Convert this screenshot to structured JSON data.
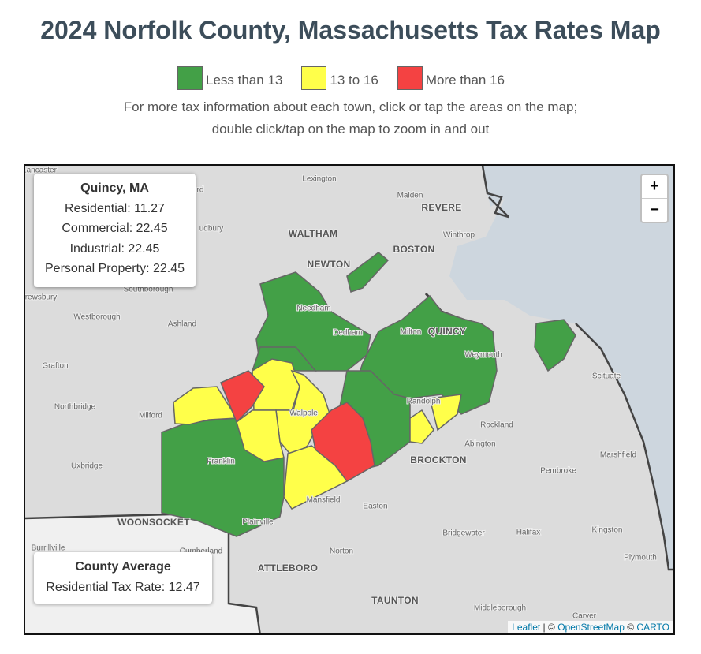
{
  "header": {
    "title": "2024 Norfolk County, Massachusetts Tax Rates Map",
    "legend": [
      {
        "label": "Less than 13",
        "color": "#43a047"
      },
      {
        "label": "13 to 16",
        "color": "#ffff4a"
      },
      {
        "label": "More than 16",
        "color": "#f44242"
      }
    ],
    "notes": [
      "For more tax information about each town, click or tap the areas on the map;",
      "double click/tap on the map to zoom in and out"
    ]
  },
  "info": {
    "title": "Quincy, MA",
    "rows": [
      "Residential: 11.27",
      "Commercial: 22.45",
      "Industrial: 22.45",
      "Personal Property: 22.45"
    ]
  },
  "average": {
    "title": "County Average",
    "text": "Residential Tax Rate: 12.47"
  },
  "zoom": [
    "+",
    "−"
  ],
  "attribution": [
    "Leaflet",
    " | © ",
    "OpenStreetMap",
    " © ",
    "CARTO"
  ],
  "places": [
    "Lancaster",
    "Lexington",
    "Malden",
    "REVERE",
    "rd",
    "udbury",
    "WALTHAM",
    "Winthrop",
    "BOSTON",
    "NEWTON",
    "Southborough",
    "rewsbury",
    "Needham",
    "Westborough",
    "Ashland",
    "Dedham",
    "Milton",
    "QUINCY",
    "Weymouth",
    "Grafton",
    "Scituate",
    "Randolph",
    "Northbridge",
    "Walpole",
    "Milford",
    "Rockland",
    "Abington",
    "Marshfield",
    "Franklin",
    "BROCKTON",
    "Uxbridge",
    "Pembroke",
    "Mansfield",
    "Easton",
    "Plainville",
    "WOONSOCKET",
    "Kingston",
    "Burrillville",
    "Bridgewater",
    "Halifax",
    "Cumberland",
    "Norton",
    "Plymouth",
    "ATTLEBORO",
    "TAUNTON",
    "Middleborough",
    "Carver"
  ]
}
